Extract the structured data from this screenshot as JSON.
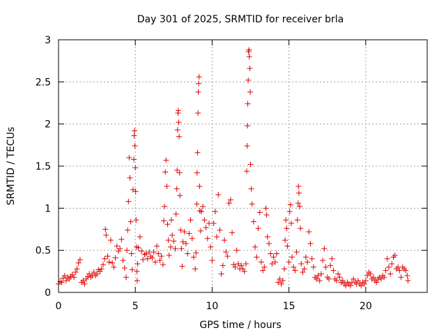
{
  "chart_data": {
    "type": "scatter",
    "title": "Day 301 of 2025, SRMTID for receiver brla",
    "xlabel": "GPS time / hours",
    "ylabel": "SRMTID / TECUs",
    "xlim": [
      0,
      24
    ],
    "ylim": [
      0,
      3
    ],
    "xticks": [
      {
        "value": 0,
        "label": "0"
      },
      {
        "value": 5,
        "label": "5"
      },
      {
        "value": 10,
        "label": "10"
      },
      {
        "value": 15,
        "label": "15"
      },
      {
        "value": 20,
        "label": "20"
      }
    ],
    "yticks": [
      {
        "value": 0,
        "label": "0"
      },
      {
        "value": 0.5,
        "label": "0.5"
      },
      {
        "value": 1,
        "label": "1"
      },
      {
        "value": 1.5,
        "label": "1.5"
      },
      {
        "value": 2,
        "label": "2"
      },
      {
        "value": 2.5,
        "label": "2.5"
      },
      {
        "value": 3,
        "label": "3"
      }
    ],
    "grid": true,
    "marker": "+",
    "series_color": "#e00000",
    "series": [
      {
        "name": "SRMTID",
        "points": [
          [
            0.0,
            0.1
          ],
          [
            0.1,
            0.13
          ],
          [
            0.2,
            0.12
          ],
          [
            0.3,
            0.17
          ],
          [
            0.4,
            0.2
          ],
          [
            0.5,
            0.14
          ],
          [
            0.6,
            0.18
          ],
          [
            0.7,
            0.16
          ],
          [
            0.8,
            0.19
          ],
          [
            0.9,
            0.21
          ],
          [
            1.0,
            0.18
          ],
          [
            1.1,
            0.24
          ],
          [
            1.2,
            0.28
          ],
          [
            1.3,
            0.35
          ],
          [
            1.4,
            0.39
          ],
          [
            1.5,
            0.12
          ],
          [
            1.6,
            0.14
          ],
          [
            1.7,
            0.1
          ],
          [
            1.8,
            0.16
          ],
          [
            1.9,
            0.19
          ],
          [
            2.0,
            0.22
          ],
          [
            2.1,
            0.18
          ],
          [
            2.2,
            0.2
          ],
          [
            2.3,
            0.24
          ],
          [
            2.4,
            0.2
          ],
          [
            2.5,
            0.22
          ],
          [
            2.6,
            0.27
          ],
          [
            2.7,
            0.25
          ],
          [
            2.8,
            0.28
          ],
          [
            2.9,
            0.33
          ],
          [
            3.0,
            0.4
          ],
          [
            3.05,
            0.75
          ],
          [
            3.1,
            0.68
          ],
          [
            3.2,
            0.43
          ],
          [
            3.3,
            0.36
          ],
          [
            3.4,
            0.62
          ],
          [
            3.5,
            0.35
          ],
          [
            3.6,
            0.3
          ],
          [
            3.7,
            0.41
          ],
          [
            3.8,
            0.55
          ],
          [
            3.9,
            0.49
          ],
          [
            4.0,
            0.52
          ],
          [
            4.1,
            0.63
          ],
          [
            4.2,
            0.38
          ],
          [
            4.3,
            0.29
          ],
          [
            4.4,
            0.18
          ],
          [
            4.45,
            0.5
          ],
          [
            4.5,
            0.74
          ],
          [
            4.55,
            1.08
          ],
          [
            4.6,
            1.6
          ],
          [
            4.65,
            1.36
          ],
          [
            4.7,
            0.84
          ],
          [
            4.75,
            0.46
          ],
          [
            4.8,
            0.27
          ],
          [
            4.85,
            1.22
          ],
          [
            4.9,
            1.58
          ],
          [
            4.92,
            1.86
          ],
          [
            4.95,
            1.92
          ],
          [
            4.97,
            1.74
          ],
          [
            5.0,
            1.48
          ],
          [
            5.02,
            1.2
          ],
          [
            5.05,
            0.86
          ],
          [
            5.08,
            0.54
          ],
          [
            5.1,
            0.25
          ],
          [
            5.12,
            0.14
          ],
          [
            5.15,
            0.34
          ],
          [
            5.2,
            0.53
          ],
          [
            5.3,
            0.66
          ],
          [
            5.4,
            0.49
          ],
          [
            5.5,
            0.39
          ],
          [
            5.6,
            0.45
          ],
          [
            5.7,
            0.46
          ],
          [
            5.8,
            0.4
          ],
          [
            5.9,
            0.48
          ],
          [
            6.0,
            0.43
          ],
          [
            6.1,
            0.41
          ],
          [
            6.2,
            0.48
          ],
          [
            6.3,
            0.36
          ],
          [
            6.4,
            0.55
          ],
          [
            6.5,
            0.46
          ],
          [
            6.6,
            0.38
          ],
          [
            6.7,
            0.43
          ],
          [
            6.8,
            0.33
          ],
          [
            6.85,
            0.85
          ],
          [
            6.9,
            1.02
          ],
          [
            6.95,
            1.43
          ],
          [
            7.0,
            1.57
          ],
          [
            7.05,
            1.26
          ],
          [
            7.1,
            0.81
          ],
          [
            7.15,
            0.62
          ],
          [
            7.2,
            0.44
          ],
          [
            7.3,
            0.54
          ],
          [
            7.35,
            0.86
          ],
          [
            7.4,
            0.68
          ],
          [
            7.5,
            0.61
          ],
          [
            7.6,
            0.52
          ],
          [
            7.65,
            0.93
          ],
          [
            7.7,
            1.23
          ],
          [
            7.72,
            1.45
          ],
          [
            7.75,
            1.93
          ],
          [
            7.78,
            2.13
          ],
          [
            7.8,
            2.16
          ],
          [
            7.82,
            2.02
          ],
          [
            7.85,
            1.85
          ],
          [
            7.88,
            1.42
          ],
          [
            7.9,
            1.15
          ],
          [
            7.95,
            0.74
          ],
          [
            8.0,
            0.52
          ],
          [
            8.05,
            0.31
          ],
          [
            8.1,
            0.6
          ],
          [
            8.2,
            0.72
          ],
          [
            8.3,
            0.58
          ],
          [
            8.4,
            0.46
          ],
          [
            8.5,
            0.7
          ],
          [
            8.6,
            0.86
          ],
          [
            8.7,
            0.64
          ],
          [
            8.8,
            0.42
          ],
          [
            8.9,
            0.28
          ],
          [
            8.95,
            0.47
          ],
          [
            9.0,
            1.05
          ],
          [
            9.02,
            1.42
          ],
          [
            9.05,
            1.66
          ],
          [
            9.08,
            2.13
          ],
          [
            9.1,
            2.38
          ],
          [
            9.12,
            2.48
          ],
          [
            9.15,
            2.56
          ],
          [
            9.18,
            1.26
          ],
          [
            9.2,
            0.97
          ],
          [
            9.25,
            0.73
          ],
          [
            9.3,
            0.96
          ],
          [
            9.4,
            1.02
          ],
          [
            9.5,
            0.86
          ],
          [
            9.6,
            0.77
          ],
          [
            9.7,
            0.64
          ],
          [
            9.8,
            0.82
          ],
          [
            9.9,
            0.54
          ],
          [
            10.0,
            0.38
          ],
          [
            10.1,
            0.82
          ],
          [
            10.2,
            0.96
          ],
          [
            10.3,
            0.66
          ],
          [
            10.4,
            1.16
          ],
          [
            10.5,
            0.74
          ],
          [
            10.6,
            0.22
          ],
          [
            10.7,
            0.32
          ],
          [
            10.8,
            0.62
          ],
          [
            10.9,
            0.48
          ],
          [
            11.0,
            0.43
          ],
          [
            11.1,
            1.06
          ],
          [
            11.2,
            1.1
          ],
          [
            11.3,
            0.71
          ],
          [
            11.4,
            0.33
          ],
          [
            11.5,
            0.3
          ],
          [
            11.6,
            0.5
          ],
          [
            11.7,
            0.34
          ],
          [
            11.8,
            0.28
          ],
          [
            11.9,
            0.32
          ],
          [
            12.0,
            0.28
          ],
          [
            12.1,
            0.25
          ],
          [
            12.2,
            0.34
          ],
          [
            12.25,
            1.44
          ],
          [
            12.28,
            1.74
          ],
          [
            12.3,
            1.98
          ],
          [
            12.32,
            2.24
          ],
          [
            12.35,
            2.52
          ],
          [
            12.37,
            2.86
          ],
          [
            12.4,
            2.88
          ],
          [
            12.42,
            2.8
          ],
          [
            12.45,
            2.66
          ],
          [
            12.48,
            2.38
          ],
          [
            12.5,
            1.52
          ],
          [
            12.55,
            1.23
          ],
          [
            12.6,
            1.05
          ],
          [
            12.7,
            0.84
          ],
          [
            12.8,
            0.54
          ],
          [
            12.9,
            0.42
          ],
          [
            13.0,
            0.76
          ],
          [
            13.1,
            0.95
          ],
          [
            13.2,
            0.36
          ],
          [
            13.3,
            0.26
          ],
          [
            13.4,
            0.3
          ],
          [
            13.5,
            1.0
          ],
          [
            13.55,
            0.92
          ],
          [
            13.6,
            0.66
          ],
          [
            13.7,
            0.58
          ],
          [
            13.8,
            0.46
          ],
          [
            13.9,
            0.34
          ],
          [
            14.0,
            0.42
          ],
          [
            14.1,
            0.36
          ],
          [
            14.2,
            0.46
          ],
          [
            14.3,
            0.12
          ],
          [
            14.4,
            0.16
          ],
          [
            14.5,
            0.1
          ],
          [
            14.6,
            0.14
          ],
          [
            14.7,
            0.28
          ],
          [
            14.75,
            0.62
          ],
          [
            14.8,
            0.86
          ],
          [
            14.85,
            0.76
          ],
          [
            14.9,
            0.55
          ],
          [
            15.0,
            0.36
          ],
          [
            15.05,
            0.96
          ],
          [
            15.1,
            1.04
          ],
          [
            15.15,
            0.82
          ],
          [
            15.2,
            0.42
          ],
          [
            15.3,
            0.3
          ],
          [
            15.4,
            0.26
          ],
          [
            15.5,
            0.48
          ],
          [
            15.55,
            0.86
          ],
          [
            15.6,
            1.06
          ],
          [
            15.62,
            1.26
          ],
          [
            15.65,
            1.18
          ],
          [
            15.7,
            1.02
          ],
          [
            15.75,
            0.76
          ],
          [
            15.8,
            0.34
          ],
          [
            15.9,
            0.24
          ],
          [
            16.0,
            0.28
          ],
          [
            16.1,
            0.42
          ],
          [
            16.2,
            0.36
          ],
          [
            16.3,
            0.72
          ],
          [
            16.4,
            0.58
          ],
          [
            16.5,
            0.4
          ],
          [
            16.6,
            0.3
          ],
          [
            16.7,
            0.18
          ],
          [
            16.8,
            0.16
          ],
          [
            16.9,
            0.2
          ],
          [
            17.0,
            0.14
          ],
          [
            17.1,
            0.22
          ],
          [
            17.2,
            0.38
          ],
          [
            17.3,
            0.52
          ],
          [
            17.4,
            0.3
          ],
          [
            17.5,
            0.18
          ],
          [
            17.6,
            0.16
          ],
          [
            17.7,
            0.32
          ],
          [
            17.8,
            0.4
          ],
          [
            17.9,
            0.26
          ],
          [
            18.0,
            0.16
          ],
          [
            18.1,
            0.14
          ],
          [
            18.2,
            0.22
          ],
          [
            18.3,
            0.18
          ],
          [
            18.4,
            0.12
          ],
          [
            18.5,
            0.14
          ],
          [
            18.6,
            0.1
          ],
          [
            18.7,
            0.08
          ],
          [
            18.8,
            0.12
          ],
          [
            18.9,
            0.1
          ],
          [
            19.0,
            0.08
          ],
          [
            19.1,
            0.12
          ],
          [
            19.2,
            0.16
          ],
          [
            19.3,
            0.12
          ],
          [
            19.4,
            0.1
          ],
          [
            19.5,
            0.14
          ],
          [
            19.6,
            0.1
          ],
          [
            19.7,
            0.08
          ],
          [
            19.8,
            0.12
          ],
          [
            19.9,
            0.1
          ],
          [
            20.0,
            0.14
          ],
          [
            20.1,
            0.2
          ],
          [
            20.2,
            0.24
          ],
          [
            20.3,
            0.22
          ],
          [
            20.4,
            0.16
          ],
          [
            20.5,
            0.18
          ],
          [
            20.6,
            0.14
          ],
          [
            20.7,
            0.12
          ],
          [
            20.8,
            0.16
          ],
          [
            20.9,
            0.18
          ],
          [
            21.0,
            0.16
          ],
          [
            21.1,
            0.2
          ],
          [
            21.2,
            0.18
          ],
          [
            21.3,
            0.26
          ],
          [
            21.4,
            0.4
          ],
          [
            21.5,
            0.3
          ],
          [
            21.6,
            0.22
          ],
          [
            21.7,
            0.34
          ],
          [
            21.8,
            0.42
          ],
          [
            21.9,
            0.44
          ],
          [
            22.0,
            0.28
          ],
          [
            22.1,
            0.3
          ],
          [
            22.2,
            0.26
          ],
          [
            22.3,
            0.18
          ],
          [
            22.4,
            0.3
          ],
          [
            22.5,
            0.28
          ],
          [
            22.6,
            0.26
          ],
          [
            22.7,
            0.2
          ],
          [
            22.75,
            0.14
          ]
        ]
      }
    ]
  }
}
